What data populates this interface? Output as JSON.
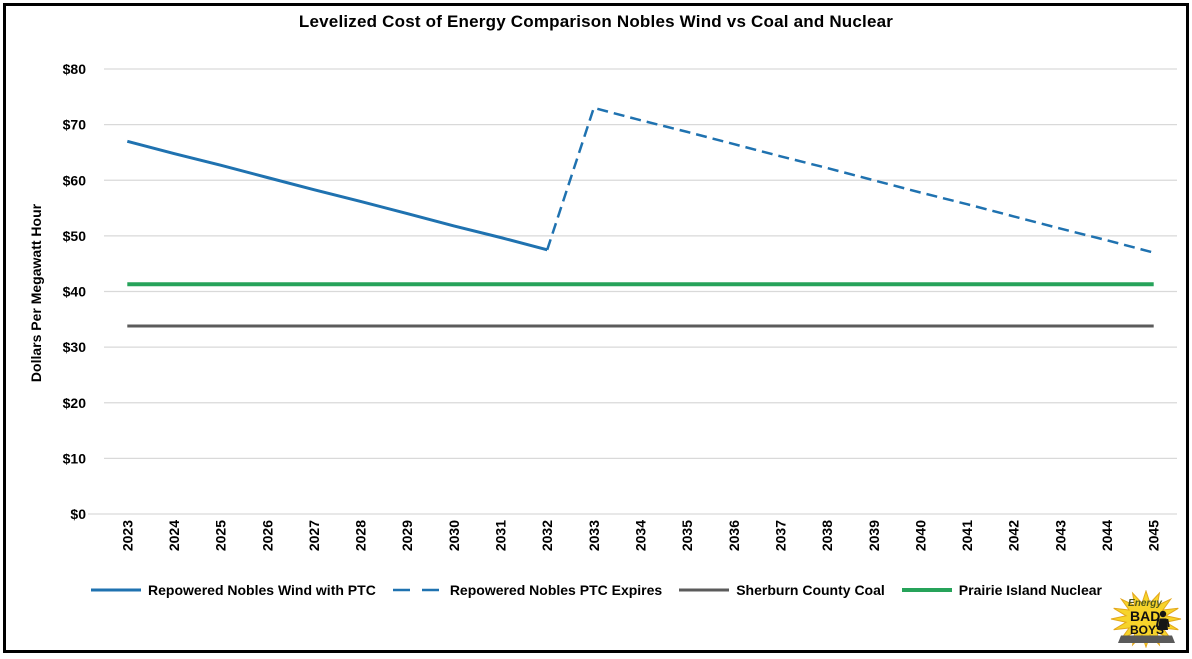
{
  "chart_data": {
    "type": "line",
    "title": "Levelized Cost of Energy Comparison Nobles Wind vs Coal and Nuclear",
    "xlabel": "",
    "ylabel": "Dollars Per Megawatt Hour",
    "ylim": [
      0,
      80
    ],
    "ytick_step": 10,
    "ytick_prefix": "$",
    "grid": true,
    "gridline_color": "#D9D9D9",
    "legend_position": "bottom",
    "categories": [
      "2023",
      "2024",
      "2025",
      "2026",
      "2027",
      "2028",
      "2029",
      "2030",
      "2031",
      "2032",
      "2033",
      "2034",
      "2035",
      "2036",
      "2037",
      "2038",
      "2039",
      "2040",
      "2041",
      "2042",
      "2043",
      "2044",
      "2045"
    ],
    "series": [
      {
        "name": "Repowered Nobles Wind with PTC",
        "color": "#1F72B0",
        "style": "solid",
        "stroke_width": 3,
        "values": [
          67.0,
          64.8,
          62.7,
          60.5,
          58.3,
          56.2,
          54.0,
          51.8,
          49.7,
          47.5,
          null,
          null,
          null,
          null,
          null,
          null,
          null,
          null,
          null,
          null,
          null,
          null,
          null
        ]
      },
      {
        "name": "Repowered Nobles PTC Expires",
        "color": "#1F72B0",
        "style": "dashed",
        "stroke_width": 2.5,
        "values": [
          null,
          null,
          null,
          null,
          null,
          null,
          null,
          null,
          null,
          47.5,
          73.0,
          70.8,
          68.7,
          66.5,
          64.3,
          62.2,
          60.0,
          57.8,
          55.7,
          53.5,
          51.3,
          49.2,
          47.0
        ]
      },
      {
        "name": "Sherburn County Coal",
        "color": "#5B5B5B",
        "style": "solid",
        "stroke_width": 3,
        "values": [
          33.8,
          33.8,
          33.8,
          33.8,
          33.8,
          33.8,
          33.8,
          33.8,
          33.8,
          33.8,
          33.8,
          33.8,
          33.8,
          33.8,
          33.8,
          33.8,
          33.8,
          33.8,
          33.8,
          33.8,
          33.8,
          33.8,
          33.8
        ]
      },
      {
        "name": "Prairie Island Nuclear",
        "color": "#26A35A",
        "style": "solid",
        "stroke_width": 4,
        "values": [
          41.3,
          41.3,
          41.3,
          41.3,
          41.3,
          41.3,
          41.3,
          41.3,
          41.3,
          41.3,
          41.3,
          41.3,
          41.3,
          41.3,
          41.3,
          41.3,
          41.3,
          41.3,
          41.3,
          41.3,
          41.3,
          41.3,
          41.3
        ]
      }
    ]
  },
  "logo": {
    "line1": "Energy",
    "line2": "BAD",
    "line3": "BOYS",
    "star_color": "#F7D42A",
    "star_border": "#E3A81C",
    "banner_color": "#5a5a5a"
  }
}
